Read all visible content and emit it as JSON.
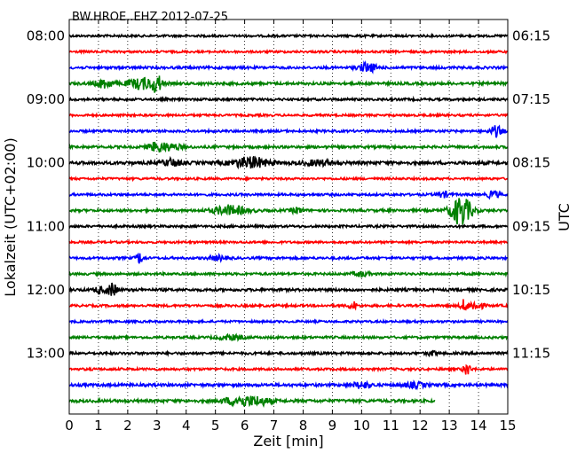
{
  "chart_data": {
    "type": "line",
    "title": "BW.HROE..EHZ 2012-07-25",
    "xlabel": "Zeit  [min]",
    "ylabel_left": "Lokalzeit (UTC+02:00)",
    "ylabel_right": "UTC",
    "xlim": [
      0,
      15
    ],
    "x_ticks": [
      0,
      1,
      2,
      3,
      4,
      5,
      6,
      7,
      8,
      9,
      10,
      11,
      12,
      13,
      14,
      15
    ],
    "grid": "vertical dotted lines at each minute",
    "left_tick_labels": [
      "08:00",
      "09:00",
      "10:00",
      "11:00",
      "12:00",
      "13:00"
    ],
    "right_tick_labels": [
      "06:15",
      "07:15",
      "08:15",
      "09:15",
      "10:15",
      "11:15"
    ],
    "trace_color_cycle": [
      "#000000",
      "#ff0000",
      "#0000ff",
      "#008000"
    ],
    "traces": [
      {
        "start": "08:00",
        "color": "#000000",
        "amp": 1.2,
        "end_min": 15,
        "events": []
      },
      {
        "start": "08:15",
        "color": "#ff0000",
        "amp": 1.2,
        "end_min": 15,
        "events": []
      },
      {
        "start": "08:30",
        "color": "#0000ff",
        "amp": 1.4,
        "end_min": 15,
        "events": [
          {
            "t": 10.2,
            "a": 5,
            "w": 0.3
          }
        ]
      },
      {
        "start": "08:45",
        "color": "#008000",
        "amp": 1.5,
        "end_min": 15,
        "events": [
          {
            "t": 1.2,
            "a": 5,
            "w": 0.3
          },
          {
            "t": 2.5,
            "a": 6,
            "w": 0.5
          },
          {
            "t": 3.0,
            "a": 9,
            "w": 0.15
          }
        ]
      },
      {
        "start": "09:00",
        "color": "#000000",
        "amp": 1.3,
        "end_min": 15,
        "events": []
      },
      {
        "start": "09:15",
        "color": "#ff0000",
        "amp": 1.2,
        "end_min": 15,
        "events": []
      },
      {
        "start": "09:30",
        "color": "#0000ff",
        "amp": 1.3,
        "end_min": 15,
        "events": [
          {
            "t": 14.6,
            "a": 6,
            "w": 0.2
          }
        ]
      },
      {
        "start": "09:45",
        "color": "#008000",
        "amp": 1.4,
        "end_min": 15,
        "events": [
          {
            "t": 3.0,
            "a": 5,
            "w": 0.3
          },
          {
            "t": 3.5,
            "a": 3,
            "w": 0.4
          }
        ]
      },
      {
        "start": "10:00",
        "color": "#000000",
        "amp": 1.8,
        "end_min": 15,
        "events": [
          {
            "t": 3.5,
            "a": 4,
            "w": 0.3
          },
          {
            "t": 6.2,
            "a": 6,
            "w": 0.6
          },
          {
            "t": 8.5,
            "a": 2.5,
            "w": 0.5
          }
        ]
      },
      {
        "start": "10:15",
        "color": "#ff0000",
        "amp": 1.2,
        "end_min": 15,
        "events": []
      },
      {
        "start": "10:30",
        "color": "#0000ff",
        "amp": 1.3,
        "end_min": 15,
        "events": [
          {
            "t": 12.8,
            "a": 3,
            "w": 0.2
          },
          {
            "t": 14.5,
            "a": 4,
            "w": 0.2
          }
        ]
      },
      {
        "start": "10:45",
        "color": "#008000",
        "amp": 1.4,
        "end_min": 15,
        "events": [
          {
            "t": 5.5,
            "a": 5,
            "w": 0.6
          },
          {
            "t": 7.8,
            "a": 3,
            "w": 0.2
          },
          {
            "t": 13.4,
            "a": 17,
            "w": 0.35
          }
        ]
      },
      {
        "start": "11:00",
        "color": "#000000",
        "amp": 1.3,
        "end_min": 15,
        "events": []
      },
      {
        "start": "11:15",
        "color": "#ff0000",
        "amp": 1.2,
        "end_min": 15,
        "events": []
      },
      {
        "start": "11:30",
        "color": "#0000ff",
        "amp": 1.3,
        "end_min": 15,
        "events": [
          {
            "t": 2.4,
            "a": 6,
            "w": 0.12
          },
          {
            "t": 5.1,
            "a": 2.5,
            "w": 0.3
          }
        ]
      },
      {
        "start": "11:45",
        "color": "#008000",
        "amp": 1.3,
        "end_min": 15,
        "events": [
          {
            "t": 10.0,
            "a": 2.5,
            "w": 0.3
          }
        ]
      },
      {
        "start": "12:00",
        "color": "#000000",
        "amp": 1.5,
        "end_min": 15,
        "events": [
          {
            "t": 1.0,
            "a": 4,
            "w": 0.12
          },
          {
            "t": 1.45,
            "a": 7,
            "w": 0.2
          }
        ]
      },
      {
        "start": "12:15",
        "color": "#ff0000",
        "amp": 1.3,
        "end_min": 15,
        "events": [
          {
            "t": 9.7,
            "a": 5,
            "w": 0.12
          },
          {
            "t": 13.5,
            "a": 6,
            "w": 0.12
          },
          {
            "t": 13.9,
            "a": 5,
            "w": 0.25
          }
        ]
      },
      {
        "start": "12:30",
        "color": "#0000ff",
        "amp": 1.2,
        "end_min": 15,
        "events": []
      },
      {
        "start": "12:45",
        "color": "#008000",
        "amp": 1.3,
        "end_min": 15,
        "events": [
          {
            "t": 5.5,
            "a": 2.5,
            "w": 0.4
          }
        ]
      },
      {
        "start": "13:00",
        "color": "#000000",
        "amp": 1.4,
        "end_min": 15,
        "events": [
          {
            "t": 12.4,
            "a": 2.5,
            "w": 0.15
          }
        ]
      },
      {
        "start": "13:15",
        "color": "#ff0000",
        "amp": 1.3,
        "end_min": 15,
        "events": [
          {
            "t": 13.6,
            "a": 7,
            "w": 0.12
          }
        ]
      },
      {
        "start": "13:30",
        "color": "#0000ff",
        "amp": 1.6,
        "end_min": 15,
        "events": [
          {
            "t": 10.0,
            "a": 3.5,
            "w": 0.3
          },
          {
            "t": 11.8,
            "a": 2.5,
            "w": 0.4
          }
        ]
      },
      {
        "start": "13:45",
        "color": "#008000",
        "amp": 1.6,
        "end_min": 12.5,
        "events": [
          {
            "t": 5.8,
            "a": 5,
            "w": 0.5
          },
          {
            "t": 6.5,
            "a": 4,
            "w": 0.4
          }
        ]
      }
    ]
  }
}
